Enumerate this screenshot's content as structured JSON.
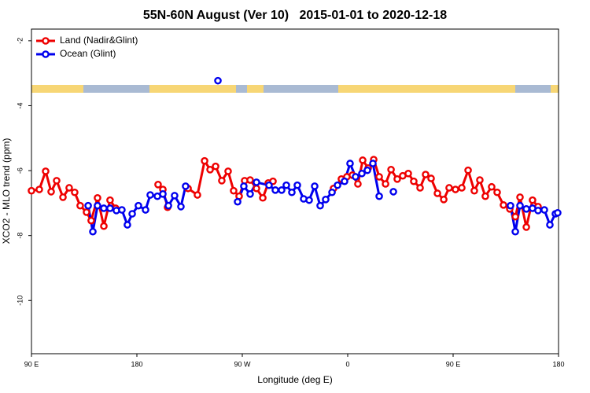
{
  "chart_data": {
    "type": "line",
    "title": "55N-60N August (Ver 10)   2015-01-01 to 2020-12-18",
    "xlabel": "Longitude (deg E)",
    "ylabel": "XCO2 - MLO trend (ppm)",
    "xlim": [
      90,
      540
    ],
    "ylim": [
      -11.64,
      -1.64
    ],
    "xticks": [
      {
        "value": 90,
        "label": "90 E"
      },
      180,
      {
        "value": 270,
        "label": "90 W"
      },
      {
        "value": 360,
        "label": "0"
      },
      {
        "value": 450,
        "label": "90 E"
      },
      {
        "value": 540,
        "label": "180"
      }
    ],
    "yticks": [
      -10,
      -8,
      -6,
      -4,
      -2
    ],
    "legend": "top-left",
    "series": [
      {
        "name": "Land (Nadir&Glint)",
        "color": "#ee0000",
        "x": [
          90,
          96.7,
          102.1,
          106.8,
          111.5,
          116.9,
          122.2,
          126.9,
          131.6,
          137.0,
          141.0,
          146.4,
          151.8,
          157.1,
          161.9,
          null,
          198.1,
          202.2,
          206.2,
          null,
          223.7,
          231.7,
          237.8,
          242.5,
          247.2,
          252.5,
          257.9,
          262.6,
          267.3,
          272.0,
          276.7,
          282.1,
          287.5,
          292.2,
          296.2,
          null,
          347.9,
          354.6,
          359.3,
          364.0,
          368.7,
          372.8,
          377.5,
          382.2,
          386.9,
          392.3,
          397.0,
          402.3,
          407.0,
          411.7,
          416.4,
          421.8,
          426.5,
          431.2,
          436.6,
          442.0,
          446.6,
          452.0,
          457.4,
          462.8,
          468.1,
          472.8,
          477.5,
          482.9,
          487.6,
          493.0,
          498.4,
          503.1,
          507.1,
          512.5,
          517.8,
          522.5
        ],
        "values": [
          -6.62,
          -6.58,
          -6.02,
          -6.65,
          -6.31,
          -6.82,
          -6.53,
          -6.67,
          -7.08,
          -7.28,
          -7.54,
          -6.84,
          -7.71,
          -6.91,
          -7.16,
          null,
          -6.43,
          -6.58,
          -7.13,
          null,
          -6.55,
          -6.75,
          -5.7,
          -5.97,
          -5.87,
          -6.31,
          -6.02,
          -6.62,
          -6.79,
          -6.31,
          -6.29,
          -6.55,
          -6.84,
          -6.38,
          -6.33,
          null,
          -6.55,
          -6.26,
          -6.19,
          -6.14,
          -6.41,
          -5.68,
          -5.92,
          -5.66,
          -6.19,
          -6.41,
          -5.97,
          -6.26,
          -6.16,
          -6.09,
          -6.33,
          -6.53,
          -6.12,
          -6.24,
          -6.7,
          -6.89,
          -6.53,
          -6.58,
          -6.53,
          -5.99,
          -6.62,
          -6.29,
          -6.79,
          -6.5,
          -6.67,
          -7.06,
          -7.18,
          -7.42,
          -6.82,
          -7.74,
          -6.91,
          -7.11
        ]
      },
      {
        "name": "Ocean (Glint)",
        "color": "#0000ee",
        "x": [
          138.4,
          142.4,
          146.4,
          151.8,
          157.1,
          162.5,
          167.2,
          171.9,
          176.0,
          181.3,
          187.4,
          191.4,
          197.5,
          202.2,
          206.9,
          212.2,
          217.6,
          221.6,
          null,
          249.2,
          null,
          266.0,
          271.3,
          276.7,
          282.1,
          292.8,
          298.2,
          303.6,
          307.6,
          312.3,
          317.0,
          322.4,
          327.1,
          331.8,
          336.5,
          341.2,
          346.6,
          351.3,
          357.3,
          362.0,
          366.7,
          372.1,
          376.8,
          381.5,
          386.9,
          null,
          399.0,
          null,
          499.0,
          503.1,
          507.1,
          512.5,
          517.8,
          522.5,
          527.9,
          532.6,
          537.3,
          539.3
        ],
        "values": [
          -7.08,
          -7.88,
          -7.08,
          -7.16,
          -7.16,
          -7.23,
          -7.21,
          -7.67,
          -7.33,
          -7.08,
          -7.21,
          -6.75,
          -6.79,
          -6.72,
          -7.08,
          -6.77,
          -7.11,
          -6.48,
          null,
          -3.23,
          null,
          -6.96,
          -6.48,
          -6.72,
          -6.36,
          -6.45,
          -6.6,
          -6.6,
          -6.45,
          -6.67,
          -6.45,
          -6.87,
          -6.91,
          -6.48,
          -7.08,
          -6.89,
          -6.67,
          -6.45,
          -6.33,
          -5.78,
          -6.19,
          -6.09,
          -5.99,
          -5.78,
          -6.79,
          null,
          -6.65,
          null,
          -7.08,
          -7.88,
          -7.08,
          -7.18,
          -7.16,
          -7.23,
          -7.21,
          -7.67,
          -7.33,
          -7.3
        ]
      }
    ]
  }
}
